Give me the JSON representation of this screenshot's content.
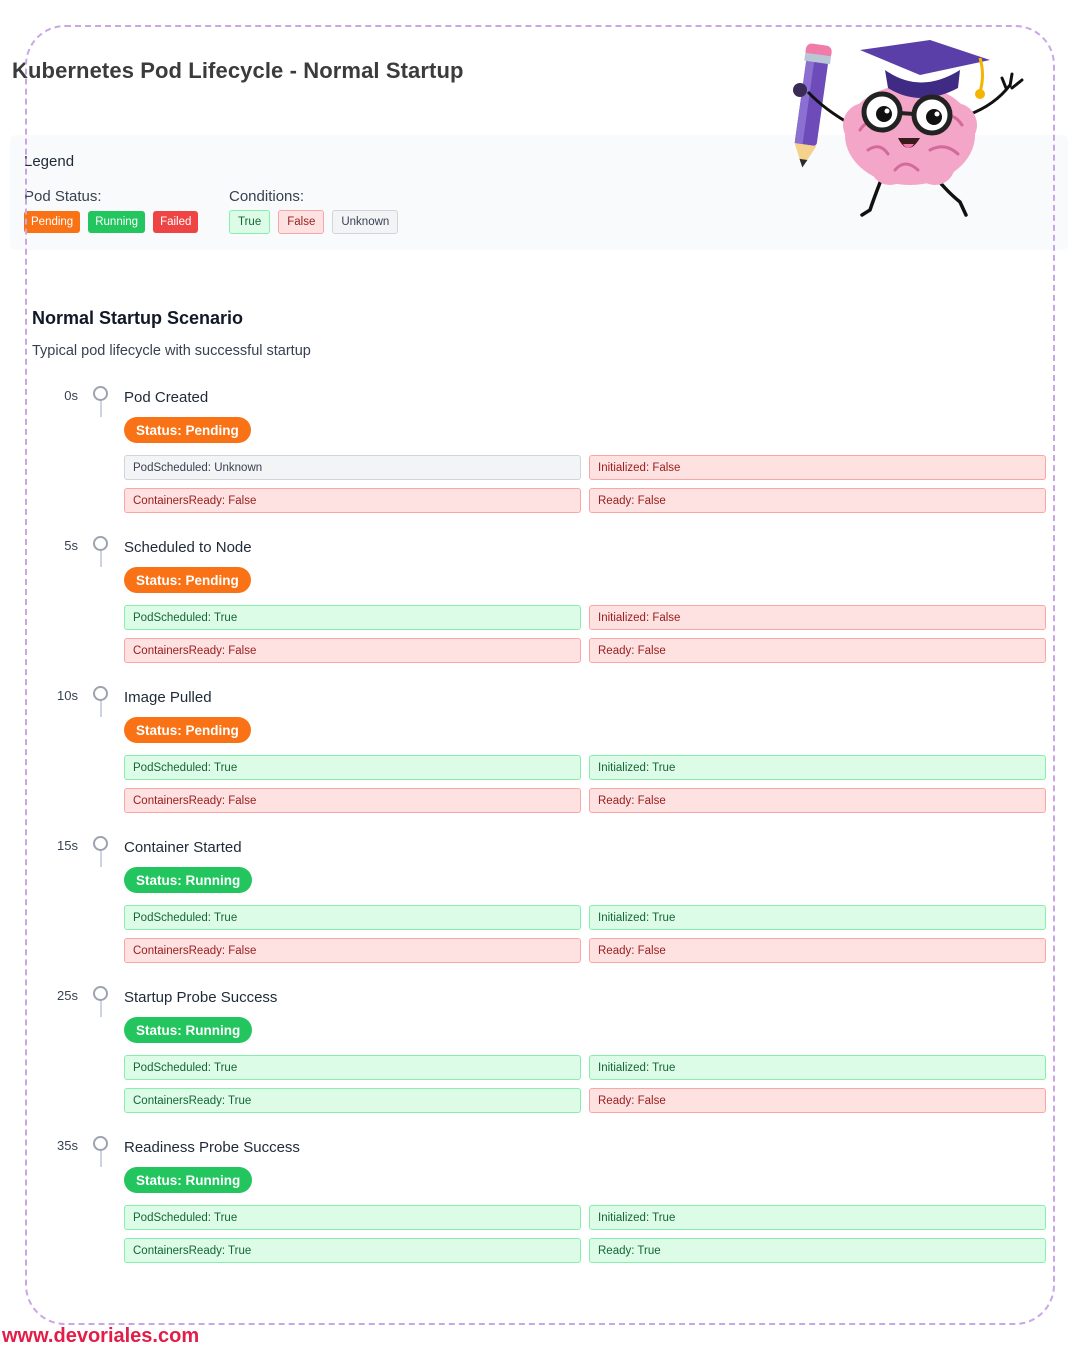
{
  "title": "Kubernetes Pod Lifecycle - Normal Startup",
  "colors": {
    "pending": "#f97316",
    "running": "#22c55e",
    "failed": "#ef4444",
    "true_bg": "#dcfce7",
    "false_bg": "#fee2e2",
    "unknown_bg": "#f3f4f6",
    "footer": "#e11d48",
    "frame": "#c9a6e6"
  },
  "mascot": {
    "icon": "brain-graduate-mascot-icon"
  },
  "legend": {
    "title": "Legend",
    "pod_status_label": "Pod Status:",
    "pod_statuses": [
      {
        "label": "Pending",
        "kind": "pending"
      },
      {
        "label": "Running",
        "kind": "running"
      },
      {
        "label": "Failed",
        "kind": "failed"
      }
    ],
    "conditions_label": "Conditions:",
    "conditions": [
      {
        "label": "True",
        "kind": "true"
      },
      {
        "label": "False",
        "kind": "false"
      },
      {
        "label": "Unknown",
        "kind": "unknown"
      }
    ]
  },
  "scenario": {
    "title": "Normal Startup Scenario",
    "subtitle": "Typical pod lifecycle with successful startup",
    "events": [
      {
        "time": "0s",
        "title": "Pod Created",
        "status": "Status: Pending",
        "status_kind": "pending",
        "conditions": [
          {
            "text": "PodScheduled: Unknown",
            "kind": "unknown"
          },
          {
            "text": "Initialized: False",
            "kind": "false"
          },
          {
            "text": "ContainersReady: False",
            "kind": "false"
          },
          {
            "text": "Ready: False",
            "kind": "false"
          }
        ]
      },
      {
        "time": "5s",
        "title": "Scheduled to Node",
        "status": "Status: Pending",
        "status_kind": "pending",
        "conditions": [
          {
            "text": "PodScheduled: True",
            "kind": "true"
          },
          {
            "text": "Initialized: False",
            "kind": "false"
          },
          {
            "text": "ContainersReady: False",
            "kind": "false"
          },
          {
            "text": "Ready: False",
            "kind": "false"
          }
        ]
      },
      {
        "time": "10s",
        "title": "Image Pulled",
        "status": "Status: Pending",
        "status_kind": "pending",
        "conditions": [
          {
            "text": "PodScheduled: True",
            "kind": "true"
          },
          {
            "text": "Initialized: True",
            "kind": "true"
          },
          {
            "text": "ContainersReady: False",
            "kind": "false"
          },
          {
            "text": "Ready: False",
            "kind": "false"
          }
        ]
      },
      {
        "time": "15s",
        "title": "Container Started",
        "status": "Status: Running",
        "status_kind": "running",
        "conditions": [
          {
            "text": "PodScheduled: True",
            "kind": "true"
          },
          {
            "text": "Initialized: True",
            "kind": "true"
          },
          {
            "text": "ContainersReady: False",
            "kind": "false"
          },
          {
            "text": "Ready: False",
            "kind": "false"
          }
        ]
      },
      {
        "time": "25s",
        "title": "Startup Probe Success",
        "status": "Status: Running",
        "status_kind": "running",
        "conditions": [
          {
            "text": "PodScheduled: True",
            "kind": "true"
          },
          {
            "text": "Initialized: True",
            "kind": "true"
          },
          {
            "text": "ContainersReady: True",
            "kind": "true"
          },
          {
            "text": "Ready: False",
            "kind": "false"
          }
        ]
      },
      {
        "time": "35s",
        "title": "Readiness Probe Success",
        "status": "Status: Running",
        "status_kind": "running",
        "conditions": [
          {
            "text": "PodScheduled: True",
            "kind": "true"
          },
          {
            "text": "Initialized: True",
            "kind": "true"
          },
          {
            "text": "ContainersReady: True",
            "kind": "true"
          },
          {
            "text": "Ready: True",
            "kind": "true"
          }
        ]
      }
    ]
  },
  "footer": {
    "url": "www.devoriales.com"
  }
}
